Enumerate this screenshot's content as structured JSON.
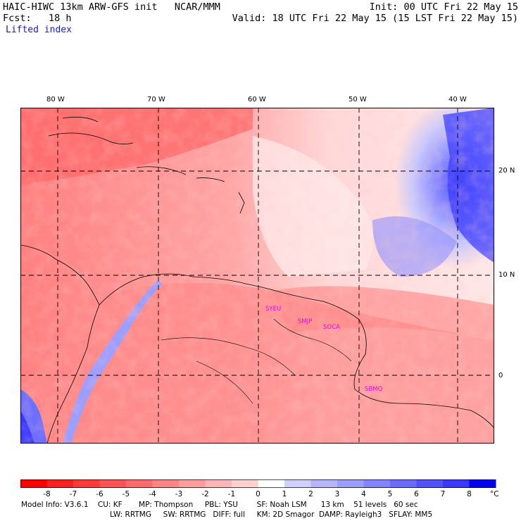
{
  "header": {
    "title_left": "HAIC-HIWC 13km ARW-GFS init   NCAR/MMM",
    "fcst_left": "Fcst:   18 h",
    "field": "Lifted index",
    "init_right": "Init: 00 UTC Fri 22 May 15",
    "valid_right": "Valid: 18 UTC Fri 22 May 15 (15 LST Fri 22 May 15)"
  },
  "map": {
    "lon_labels": [
      "80 W",
      "70 W",
      "60 W",
      "50 W",
      "40 W"
    ],
    "lat_labels": [
      "20 N",
      "10 N",
      "0"
    ],
    "stations": [
      "SYEU",
      "SMJP",
      "SOCA",
      "SBMQ"
    ]
  },
  "colorbar": {
    "ticks": [
      "-8",
      "-7",
      "-6",
      "-5",
      "-4",
      "-3",
      "-2",
      "-1",
      "0",
      "1",
      "2",
      "3",
      "4",
      "5",
      "6",
      "7",
      "8"
    ],
    "unit": "°C",
    "colors": [
      "#ff0000",
      "#ff2121",
      "#ff3a3a",
      "#ff5252",
      "#ff6b6b",
      "#ff8484",
      "#ff9d9d",
      "#ffb6b6",
      "#ffd0d0",
      "#ffffff",
      "#d0d0ff",
      "#b6b6ff",
      "#9d9dff",
      "#8484ff",
      "#6b6bff",
      "#5252ff",
      "#3a3aff",
      "#0000f0"
    ]
  },
  "model_info": {
    "line1": "Model Info: V3.6.1    CU: KF       MP: Thompson     PBL: YSU        SF: Noah LSM      13 km    51 levels   60 sec",
    "line2": "LW: RRTMG     SW: RRTMG   DIFF: full     KM: 2D Smagor  DAMP: Rayleigh3   SFLAY: MM5"
  }
}
